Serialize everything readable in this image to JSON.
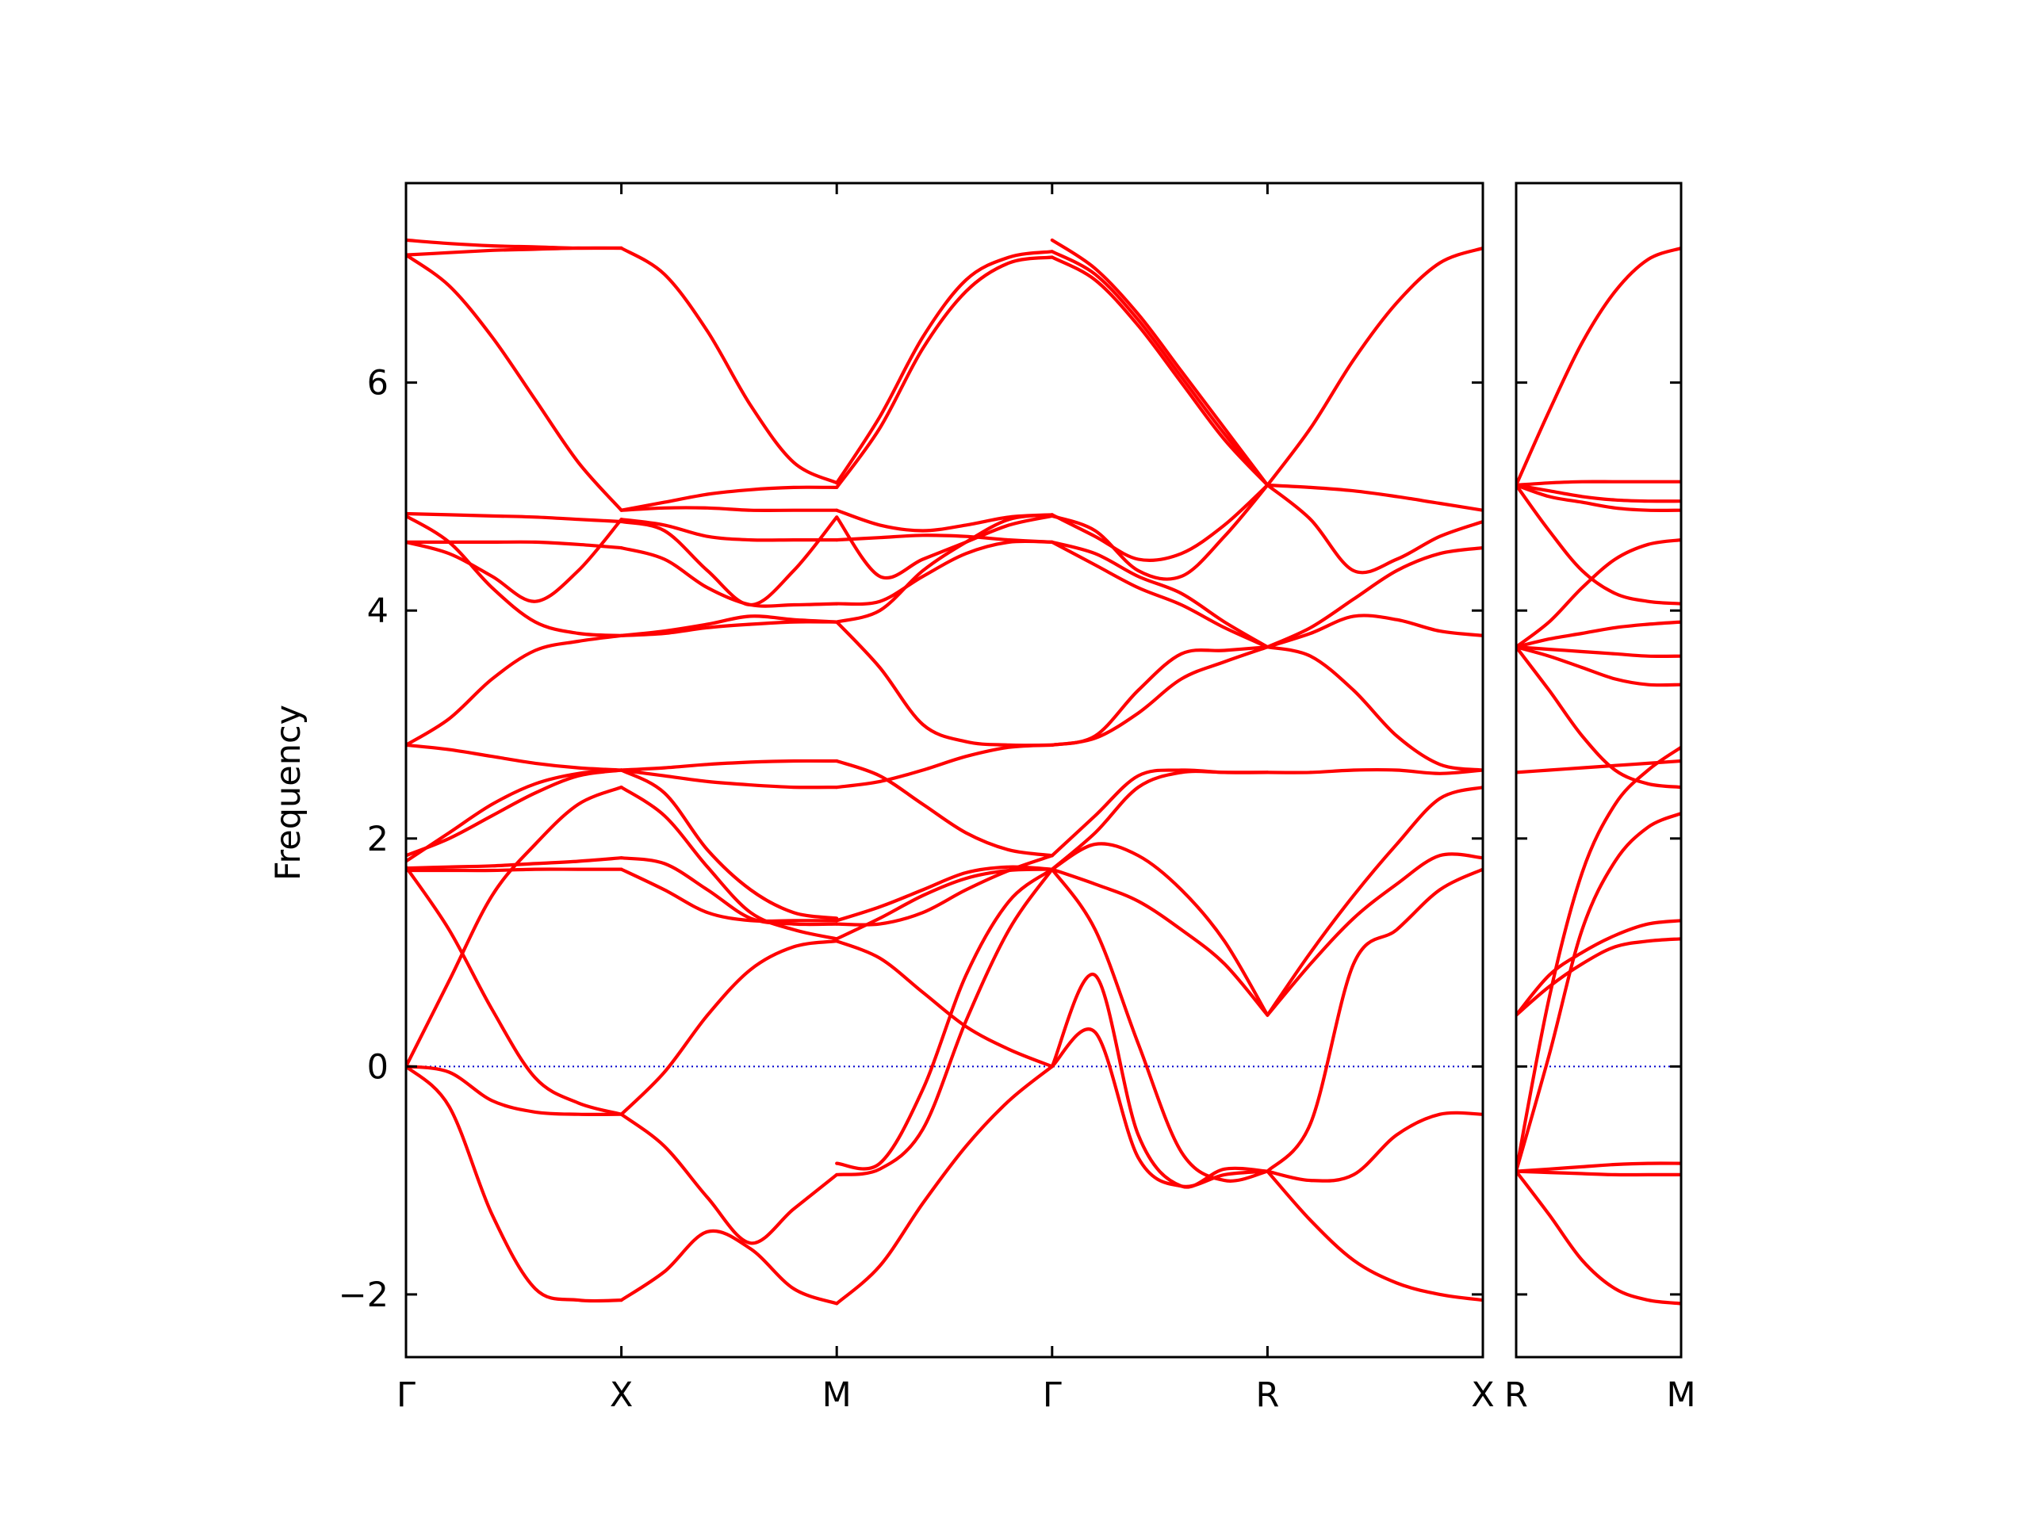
{
  "chart_data": {
    "type": "line",
    "title": "",
    "ylabel": "Frequency",
    "ylim": [
      -2.55,
      7.75
    ],
    "yticks": [
      {
        "value": -2,
        "label": "−2"
      },
      {
        "value": 0,
        "label": "0"
      },
      {
        "value": 2,
        "label": "2"
      },
      {
        "value": 4,
        "label": "4"
      },
      {
        "value": 6,
        "label": "6"
      }
    ],
    "grid": false,
    "line_color": "#ff0000",
    "zero_line_color": "#0000cc",
    "panels": [
      {
        "xrange": [
          0,
          5
        ],
        "xticks": [
          {
            "value": 0,
            "label": "Γ"
          },
          {
            "value": 1,
            "label": "X"
          },
          {
            "value": 2,
            "label": "M"
          },
          {
            "value": 3,
            "label": "Γ"
          },
          {
            "value": 4,
            "label": "R"
          },
          {
            "value": 5,
            "label": "X"
          }
        ],
        "segments": [
          {
            "from": "Γ",
            "to": "X",
            "bands": [
              [
                0,
                0.75,
                1.5,
                1.95,
                2.3,
                2.45
              ],
              [
                0,
                -0.35,
                -1.3,
                -1.95,
                -2.05,
                -2.05
              ],
              [
                0,
                -0.05,
                -0.3,
                -0.4,
                -0.42,
                -0.42
              ],
              [
                1.75,
                1.2,
                0.5,
                -0.1,
                -0.32,
                -0.42
              ],
              [
                1.72,
                1.72,
                1.72,
                1.73,
                1.73,
                1.73
              ],
              [
                1.74,
                1.75,
                1.76,
                1.78,
                1.8,
                1.83
              ],
              [
                1.85,
                2.0,
                2.2,
                2.4,
                2.55,
                2.6
              ],
              [
                1.8,
                2.05,
                2.3,
                2.48,
                2.57,
                2.6
              ],
              [
                2.82,
                2.78,
                2.72,
                2.66,
                2.62,
                2.6
              ],
              [
                2.82,
                3.05,
                3.4,
                3.65,
                3.73,
                3.78
              ],
              [
                4.6,
                4.6,
                4.6,
                4.6,
                4.58,
                4.55
              ],
              [
                4.6,
                4.5,
                4.3,
                4.08,
                4.35,
                4.8
              ],
              [
                4.83,
                4.6,
                4.2,
                3.9,
                3.8,
                3.78
              ],
              [
                4.85,
                4.84,
                4.83,
                4.82,
                4.8,
                4.78
              ],
              [
                7.12,
                6.85,
                6.4,
                5.85,
                5.3,
                4.88
              ],
              [
                7.25,
                7.22,
                7.2,
                7.19,
                7.18,
                7.18
              ],
              [
                7.12,
                7.14,
                7.16,
                7.17,
                7.18,
                7.18
              ]
            ]
          },
          {
            "from": "X",
            "to": "M",
            "bands": [
              [
                2.45,
                2.2,
                1.75,
                1.35,
                1.2,
                1.12
              ],
              [
                -2.05,
                -1.8,
                -1.45,
                -1.6,
                -1.95,
                -2.08
              ],
              [
                -0.42,
                -0.05,
                0.45,
                0.85,
                1.05,
                1.1
              ],
              [
                -0.42,
                -0.7,
                -1.15,
                -1.55,
                -1.25,
                -0.95
              ],
              [
                1.73,
                1.55,
                1.35,
                1.28,
                1.28,
                1.28
              ],
              [
                1.83,
                1.78,
                1.55,
                1.3,
                1.25,
                1.25
              ],
              [
                2.6,
                2.4,
                1.9,
                1.55,
                1.35,
                1.3
              ],
              [
                2.6,
                2.55,
                2.5,
                2.47,
                2.45,
                2.45
              ],
              [
                2.6,
                2.62,
                2.65,
                2.67,
                2.68,
                2.68
              ],
              [
                3.78,
                3.8,
                3.85,
                3.88,
                3.9,
                3.9
              ],
              [
                4.55,
                4.45,
                4.2,
                4.05,
                4.05,
                4.06
              ],
              [
                4.8,
                4.75,
                4.65,
                4.62,
                4.62,
                4.62
              ],
              [
                3.78,
                3.82,
                3.88,
                3.95,
                3.92,
                3.9
              ],
              [
                4.78,
                4.7,
                4.35,
                4.05,
                4.35,
                4.82
              ],
              [
                4.88,
                4.9,
                4.9,
                4.88,
                4.88,
                4.88
              ],
              [
                4.88,
                4.95,
                5.02,
                5.06,
                5.08,
                5.08
              ],
              [
                7.18,
                6.95,
                6.45,
                5.8,
                5.3,
                5.12
              ]
            ]
          },
          {
            "from": "M",
            "to": "Γ",
            "bands": [
              [
                1.12,
                1.3,
                1.5,
                1.65,
                1.72,
                1.73
              ],
              [
                -2.08,
                -1.75,
                -1.2,
                -0.7,
                -0.3,
                0
              ],
              [
                1.1,
                0.95,
                0.65,
                0.35,
                0.15,
                0
              ],
              [
                -0.95,
                -0.9,
                -0.55,
                0.4,
                1.2,
                1.73
              ],
              [
                1.28,
                1.4,
                1.55,
                1.7,
                1.75,
                1.73
              ],
              [
                1.25,
                1.25,
                1.35,
                1.55,
                1.72,
                1.85
              ],
              [
                -0.85,
                -0.85,
                -0.2,
                0.8,
                1.45,
                1.73
              ],
              [
                2.45,
                2.5,
                2.6,
                2.72,
                2.8,
                2.82
              ],
              [
                2.68,
                2.55,
                2.3,
                2.05,
                1.9,
                1.85
              ],
              [
                3.9,
                3.5,
                3.0,
                2.85,
                2.82,
                2.82
              ],
              [
                4.06,
                4.08,
                4.3,
                4.5,
                4.6,
                4.6
              ],
              [
                4.62,
                4.64,
                4.66,
                4.65,
                4.62,
                4.6
              ],
              [
                3.9,
                4.0,
                4.35,
                4.6,
                4.8,
                4.84
              ],
              [
                4.82,
                4.3,
                4.45,
                4.6,
                4.75,
                4.83
              ],
              [
                4.88,
                4.75,
                4.7,
                4.75,
                4.82,
                4.84
              ],
              [
                5.08,
                5.6,
                6.3,
                6.8,
                7.05,
                7.1
              ],
              [
                5.12,
                5.7,
                6.4,
                6.9,
                7.1,
                7.15
              ]
            ]
          },
          {
            "from": "Γ",
            "to": "R",
            "bands": [
              [
                1.73,
                1.2,
                0.2,
                -0.75,
                -1.0,
                -0.92
              ],
              [
                0,
                0.3,
                -0.8,
                -1.05,
                -0.95,
                -0.92
              ],
              [
                0,
                0.8,
                -0.6,
                -1.05,
                -0.9,
                -0.92
              ],
              [
                1.73,
                1.6,
                1.45,
                1.2,
                0.9,
                0.45
              ],
              [
                1.73,
                1.95,
                1.85,
                1.55,
                1.1,
                0.45
              ],
              [
                1.85,
                2.2,
                2.55,
                2.6,
                2.58,
                2.58
              ],
              [
                1.73,
                2.05,
                2.45,
                2.58,
                2.58,
                2.58
              ],
              [
                2.82,
                2.88,
                3.1,
                3.4,
                3.55,
                3.68
              ],
              [
                2.82,
                2.9,
                3.3,
                3.62,
                3.65,
                3.68
              ],
              [
                4.6,
                4.4,
                4.2,
                4.05,
                3.85,
                3.68
              ],
              [
                4.6,
                4.5,
                4.3,
                4.15,
                3.9,
                3.68
              ],
              [
                4.84,
                4.65,
                4.45,
                4.5,
                4.75,
                5.1
              ],
              [
                4.83,
                4.7,
                4.35,
                4.3,
                4.65,
                5.1
              ],
              [
                7.1,
                6.9,
                6.5,
                6.0,
                5.5,
                5.1
              ],
              [
                7.15,
                6.95,
                6.55,
                6.05,
                5.55,
                5.1
              ],
              [
                7.25,
                7.0,
                6.6,
                6.1,
                5.6,
                5.1
              ]
            ]
          },
          {
            "from": "R",
            "to": "X",
            "bands": [
              [
                -0.92,
                -1.35,
                -1.7,
                -1.9,
                -2.0,
                -2.05
              ],
              [
                -0.92,
                -1.0,
                -0.95,
                -0.6,
                -0.42,
                -0.42
              ],
              [
                -0.92,
                -0.5,
                0.9,
                1.2,
                1.55,
                1.73
              ],
              [
                0.45,
                0.9,
                1.3,
                1.6,
                1.85,
                1.83
              ],
              [
                0.45,
                1.0,
                1.5,
                1.95,
                2.35,
                2.45
              ],
              [
                2.58,
                2.58,
                2.6,
                2.6,
                2.57,
                2.6
              ],
              [
                3.68,
                3.6,
                3.3,
                2.9,
                2.65,
                2.6
              ],
              [
                3.68,
                3.8,
                3.95,
                3.92,
                3.82,
                3.78
              ],
              [
                3.68,
                3.85,
                4.1,
                4.35,
                4.5,
                4.55
              ],
              [
                5.1,
                4.8,
                4.35,
                4.45,
                4.65,
                4.78
              ],
              [
                5.1,
                5.08,
                5.05,
                5.0,
                4.94,
                4.88
              ],
              [
                5.1,
                5.6,
                6.2,
                6.7,
                7.05,
                7.18
              ]
            ]
          }
        ]
      },
      {
        "xrange": [
          0,
          1
        ],
        "xticks": [
          {
            "value": 0,
            "label": "R"
          },
          {
            "value": 1,
            "label": "M"
          }
        ],
        "segments": [
          {
            "from": "R",
            "to": "M",
            "bands": [
              [
                -0.92,
                -1.3,
                -1.7,
                -1.95,
                -2.05,
                -2.08
              ],
              [
                -0.92,
                -0.9,
                -0.88,
                -0.86,
                -0.85,
                -0.85
              ],
              [
                -0.92,
                -0.93,
                -0.94,
                -0.95,
                -0.95,
                -0.95
              ],
              [
                -0.92,
                0.6,
                1.7,
                2.3,
                2.6,
                2.8
              ],
              [
                -0.92,
                0.1,
                1.2,
                1.8,
                2.1,
                2.22
              ],
              [
                0.45,
                0.8,
                1.0,
                1.15,
                1.25,
                1.28
              ],
              [
                0.45,
                0.7,
                0.9,
                1.05,
                1.1,
                1.12
              ],
              [
                2.58,
                2.6,
                2.62,
                2.64,
                2.66,
                2.68
              ],
              [
                3.68,
                3.3,
                2.9,
                2.6,
                2.48,
                2.45
              ],
              [
                3.68,
                3.6,
                3.5,
                3.4,
                3.35,
                3.35
              ],
              [
                3.68,
                3.66,
                3.64,
                3.62,
                3.6,
                3.6
              ],
              [
                3.68,
                3.75,
                3.8,
                3.85,
                3.88,
                3.9
              ],
              [
                3.68,
                3.9,
                4.2,
                4.45,
                4.58,
                4.62
              ],
              [
                5.1,
                4.7,
                4.35,
                4.15,
                4.08,
                4.06
              ],
              [
                5.1,
                5.12,
                5.13,
                5.13,
                5.13,
                5.13
              ],
              [
                5.1,
                5.05,
                5.0,
                4.97,
                4.96,
                4.96
              ],
              [
                5.1,
                5.0,
                4.95,
                4.9,
                4.88,
                4.88
              ],
              [
                5.1,
                5.75,
                6.35,
                6.8,
                7.08,
                7.18
              ]
            ]
          }
        ]
      }
    ]
  }
}
